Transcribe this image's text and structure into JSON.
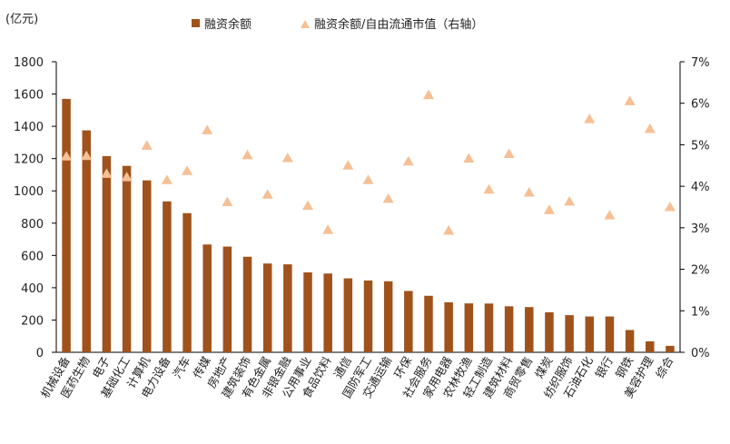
{
  "chart_data": {
    "type": "bar",
    "unit_label": "(亿元)",
    "categories": [
      "机械设备",
      "医药生物",
      "电子",
      "基础化工",
      "计算机",
      "电力设备",
      "汽车",
      "传媒",
      "房地产",
      "建筑装饰",
      "有色金属",
      "非银金融",
      "公用事业",
      "食品饮料",
      "通信",
      "国防军工",
      "交通运输",
      "环保",
      "社会服务",
      "家用电器",
      "农林牧渔",
      "轻工制造",
      "建筑材料",
      "商贸零售",
      "煤炭",
      "纺织服饰",
      "石油石化",
      "银行",
      "钢铁",
      "美容护理",
      "综合"
    ],
    "series": [
      {
        "name": "融资余额",
        "type": "bar",
        "axis": "left",
        "color": "#a0521c",
        "values": [
          1570,
          1375,
          1215,
          1155,
          1065,
          935,
          862,
          668,
          655,
          592,
          550,
          545,
          495,
          488,
          458,
          445,
          440,
          380,
          350,
          310,
          303,
          302,
          285,
          280,
          248,
          230,
          222,
          222,
          138,
          68,
          40
        ]
      },
      {
        "name": "融资余额/自由流通市值（右轴）",
        "type": "scatter",
        "axis": "right",
        "color": "#f6bf94",
        "values": [
          4.72,
          4.73,
          4.3,
          4.22,
          4.98,
          4.15,
          4.37,
          5.35,
          3.62,
          4.75,
          3.8,
          4.68,
          3.53,
          2.95,
          4.5,
          4.15,
          3.7,
          4.6,
          6.2,
          2.93,
          4.67,
          3.92,
          4.78,
          3.85,
          3.43,
          3.63,
          5.62,
          3.3,
          6.05,
          5.38,
          3.5
        ]
      }
    ],
    "y_left": {
      "min": 0,
      "max": 1800,
      "ticks": [
        "0",
        "200",
        "400",
        "600",
        "800",
        "1000",
        "1200",
        "1400",
        "1600",
        "1800"
      ]
    },
    "y_right": {
      "min": 0,
      "max": 7,
      "ticks": [
        "0%",
        "1%",
        "2%",
        "3%",
        "4%",
        "5%",
        "6%",
        "7%"
      ]
    },
    "legend_position": "top-center",
    "grid": false
  }
}
